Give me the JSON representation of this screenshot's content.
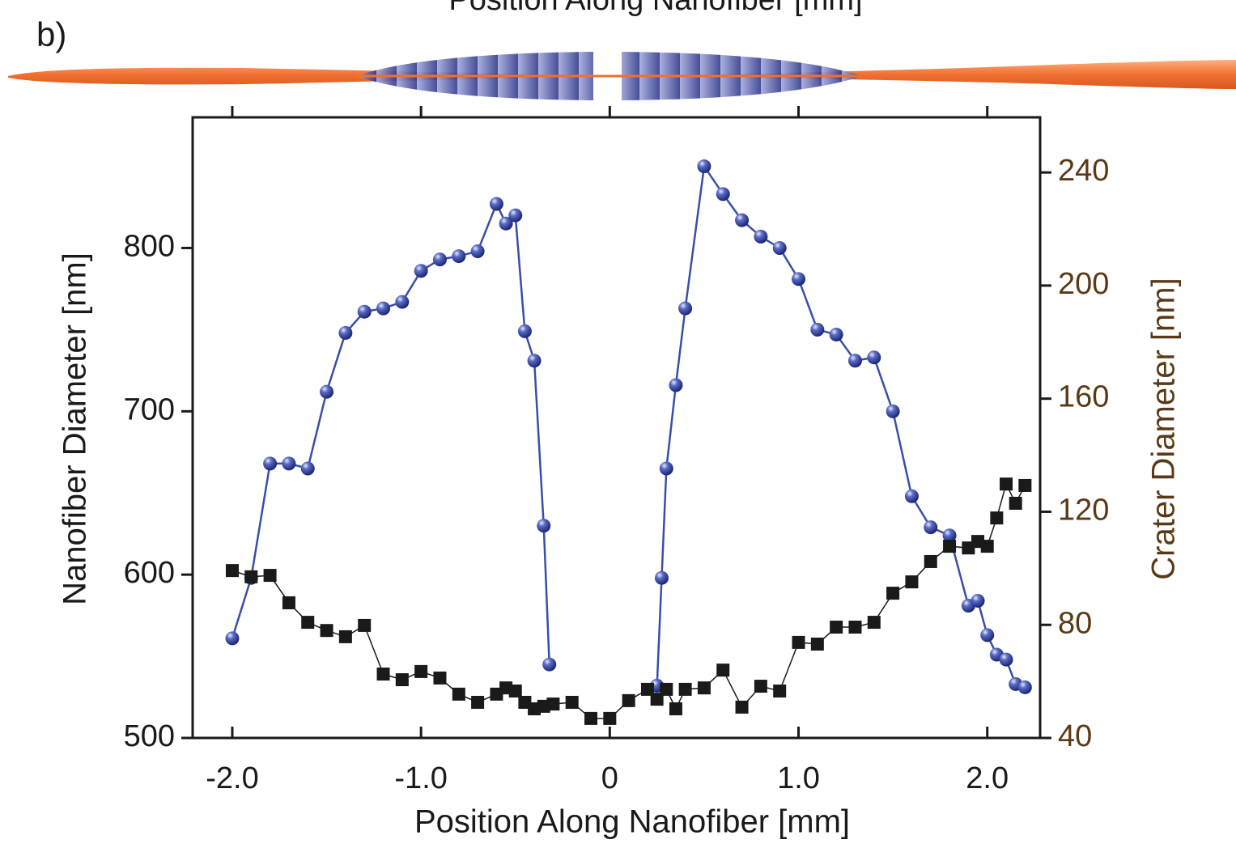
{
  "chart_data": {
    "type": "line",
    "top_label": "Position Along Nanofiber [mm]",
    "panel_label": "b)",
    "x_label": "Position Along Nanofiber [mm]",
    "y_label": "Nanofiber Diameter [nm]",
    "y2_label": "Crater Diameter [nm]",
    "y2_color": "#5a3a16",
    "xlim": [
      -2.21,
      2.28
    ],
    "ylim": [
      500,
      880
    ],
    "y2lim": [
      40,
      259.5
    ],
    "xticks": [
      {
        "value": -2,
        "label": "-2.0"
      },
      {
        "value": -1,
        "label": "-1.0"
      },
      0,
      {
        "value": 1,
        "label": "1.0"
      },
      {
        "value": 2,
        "label": "2.0"
      }
    ],
    "yticks": [
      500,
      600,
      700,
      800
    ],
    "y2ticks": [
      40,
      80,
      120,
      160,
      200,
      240
    ],
    "series": [
      {
        "color": "#3a4ea8",
        "marker": "sphere",
        "x": [
          -2.0,
          -1.9,
          -1.8,
          -1.7,
          -1.6,
          -1.5,
          -1.4,
          -1.3,
          -1.2,
          -1.1,
          -1.0,
          -0.9,
          -0.8,
          -0.7,
          -0.6,
          -0.55,
          -0.5,
          -0.45,
          -0.4,
          -0.35,
          -0.32
        ],
        "values": [
          561,
          598,
          668,
          668,
          665,
          712,
          748,
          761,
          763,
          767,
          786,
          793,
          795,
          798,
          827,
          815,
          820,
          749,
          731,
          630,
          545
        ]
      },
      {
        "color": "#3a4ea8",
        "marker": "sphere",
        "x": [
          0.25,
          0.275,
          0.3,
          0.35,
          0.4,
          0.5,
          0.6,
          0.7,
          0.8,
          0.9,
          1.0,
          1.1,
          1.2,
          1.3,
          1.4,
          1.5,
          1.6,
          1.7,
          1.8,
          1.9,
          1.95,
          2.0,
          2.05,
          2.1,
          2.15,
          2.2
        ],
        "values": [
          532,
          598,
          665,
          716,
          763,
          850,
          833,
          817,
          807,
          800,
          781,
          750,
          747,
          731,
          733,
          700,
          648,
          629,
          624,
          581,
          584,
          563,
          551,
          548,
          533,
          531
        ]
      },
      {
        "color": "#1a1a1a",
        "marker": "square",
        "axis": "y2",
        "x": [
          -2.0,
          -1.9,
          -1.8,
          -1.7,
          -1.6,
          -1.5,
          -1.4,
          -1.3,
          -1.2,
          -1.1,
          -1.0,
          -0.9,
          -0.8,
          -0.7,
          -0.6,
          -0.55,
          -0.5,
          -0.45,
          -0.4,
          -0.35,
          -0.3,
          -0.2,
          -0.1,
          0.0,
          0.1,
          0.2,
          0.25,
          0.3,
          0.35,
          0.4,
          0.5,
          0.6,
          0.7,
          0.8,
          0.9,
          1.0,
          1.1,
          1.2,
          1.3,
          1.4,
          1.5,
          1.6,
          1.7,
          1.8,
          1.9,
          1.95,
          2.0,
          2.05,
          2.1,
          2.15,
          2.2
        ],
        "values": [
          99.2,
          97,
          97.5,
          87.8,
          80.9,
          78,
          75.8,
          79.8,
          62.6,
          60.6,
          63.5,
          61.2,
          55.5,
          52.6,
          55.5,
          57.7,
          56.6,
          52.6,
          50.3,
          51.2,
          52,
          52.6,
          46.9,
          46.9,
          53.2,
          57.2,
          53.7,
          57.2,
          50.3,
          57.2,
          57.7,
          64,
          50.9,
          58.3,
          56.6,
          73.8,
          73.2,
          79.2,
          79.2,
          80.9,
          91.2,
          95.2,
          102.4,
          107.8,
          107.2,
          109.5,
          107.8,
          117.8,
          129.8,
          123,
          129.3
        ]
      }
    ]
  }
}
